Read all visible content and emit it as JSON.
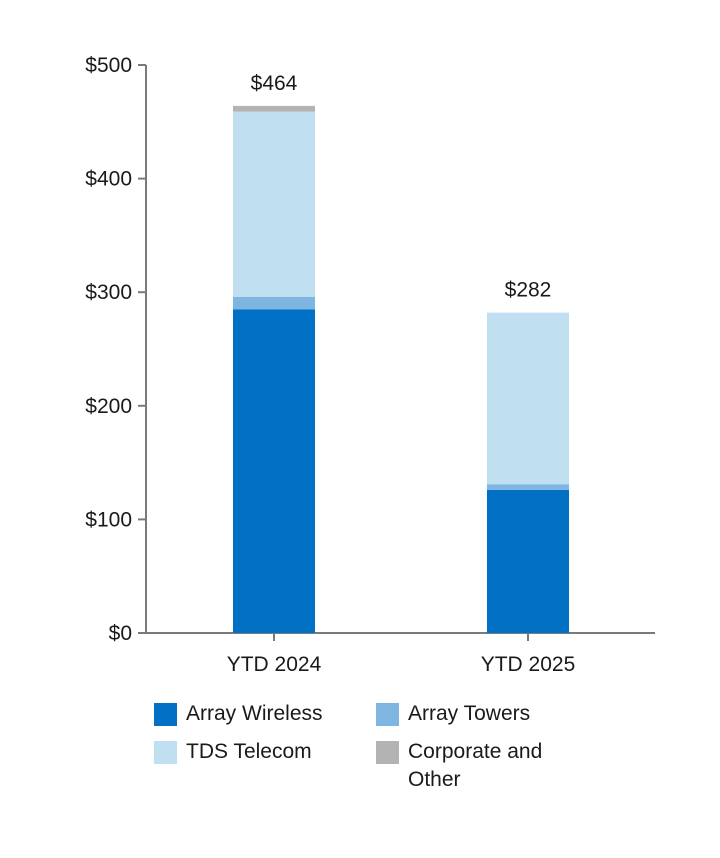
{
  "chart_data": {
    "type": "bar",
    "stacked": true,
    "categories": [
      "YTD 2024",
      "YTD 2025"
    ],
    "series": [
      {
        "name": "Array Wireless",
        "values": [
          285,
          126
        ],
        "color": "#0071c5"
      },
      {
        "name": "Array Towers",
        "values": [
          11,
          5
        ],
        "color": "#7fb6e1"
      },
      {
        "name": "TDS Telecom",
        "values": [
          163,
          151
        ],
        "color": "#c0dff1"
      },
      {
        "name": "Corporate and Other",
        "values": [
          5,
          0
        ],
        "color": "#b3b3b3"
      }
    ],
    "totals": [
      "$464",
      "$282"
    ],
    "y_ticks": [
      "$0",
      "$100",
      "$200",
      "$300",
      "$400",
      "$500"
    ],
    "ylim": [
      0,
      500
    ],
    "grid": false,
    "legend_position": "bottom"
  }
}
